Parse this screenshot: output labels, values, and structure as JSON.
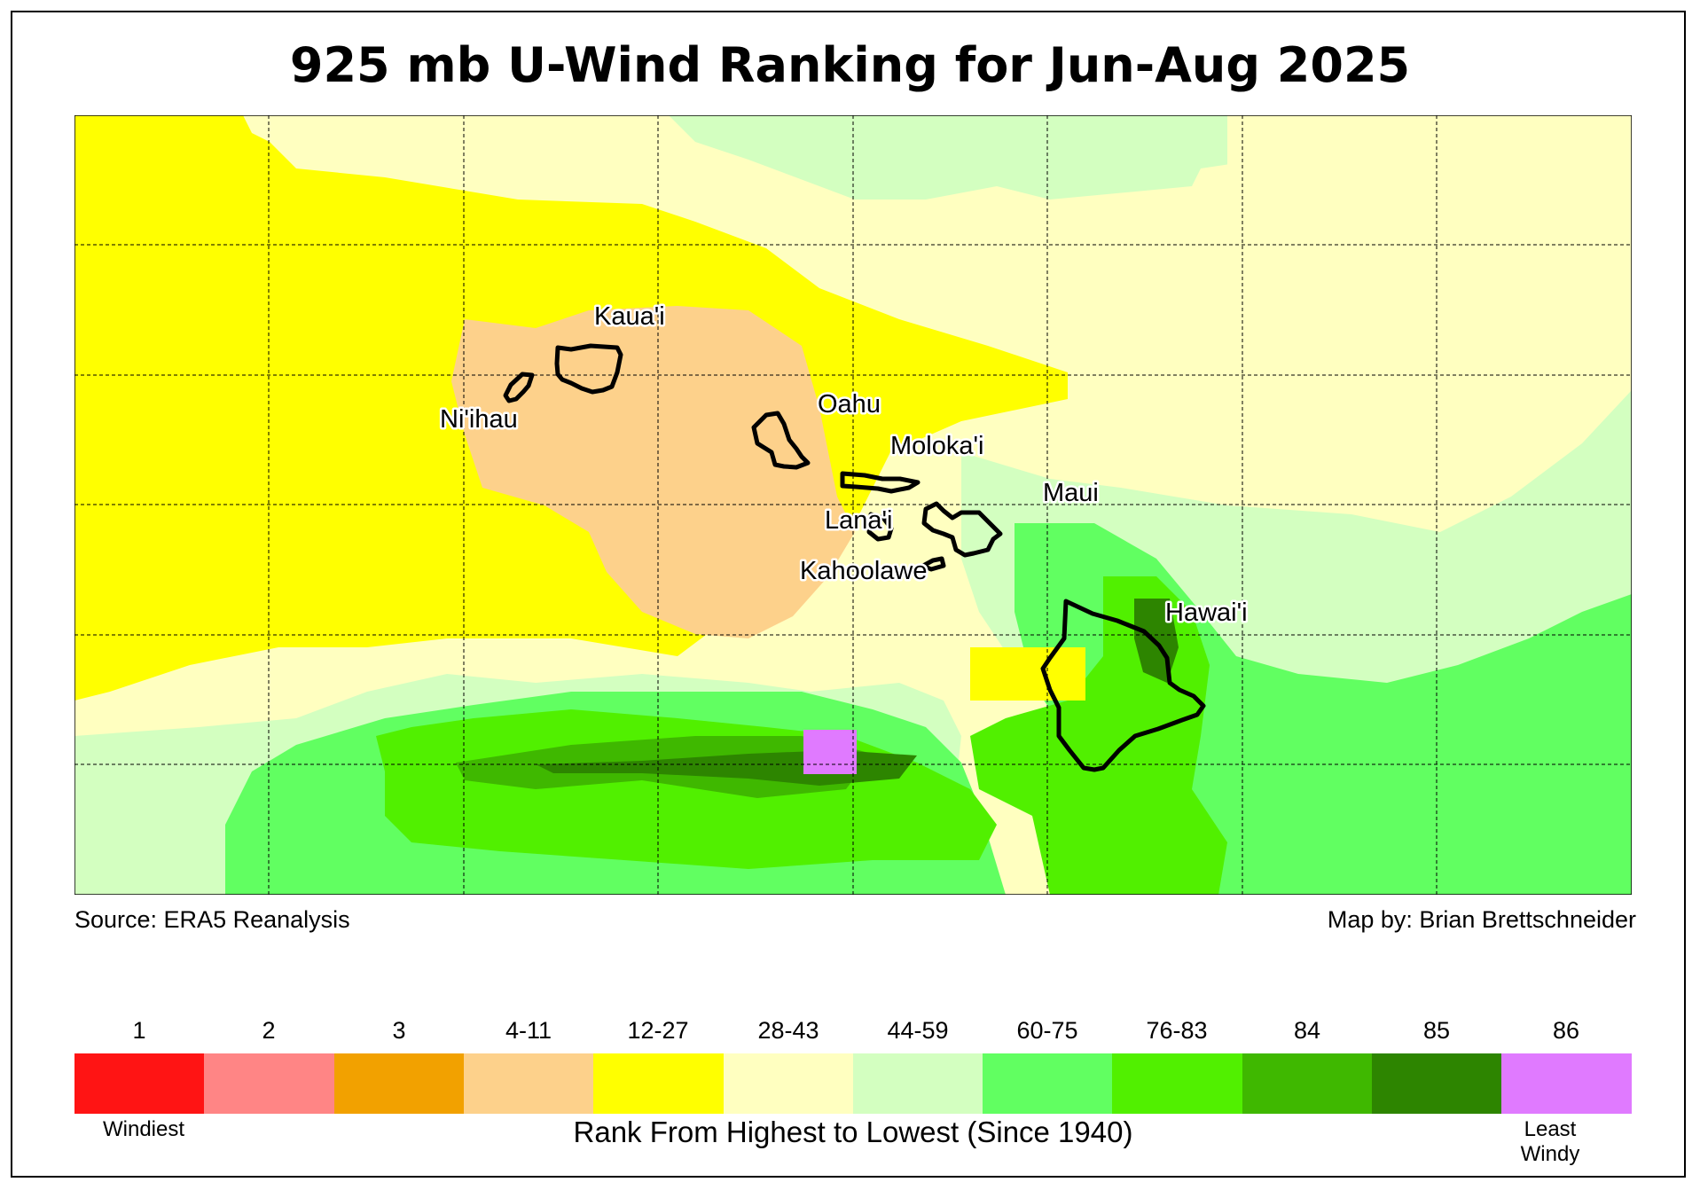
{
  "title": "925 mb U-Wind Ranking for Jun-Aug 2025",
  "source": "Source: ERA5 Reanalysis",
  "credit": "Map by: Brian Brettschneider",
  "islands": [
    {
      "id": "kauai",
      "label": "Kaua'i"
    },
    {
      "id": "niihau",
      "label": "Ni'ihau"
    },
    {
      "id": "oahu",
      "label": "Oahu"
    },
    {
      "id": "molokai",
      "label": "Moloka'i"
    },
    {
      "id": "maui",
      "label": "Maui"
    },
    {
      "id": "lanai",
      "label": "Lana'i"
    },
    {
      "id": "kahoolawe",
      "label": "Kahoolawe"
    },
    {
      "id": "hawaii",
      "label": "Hawai'i"
    }
  ],
  "legend": {
    "bins": [
      {
        "label": "1",
        "color": "#ff1414"
      },
      {
        "label": "2",
        "color": "#ff8585"
      },
      {
        "label": "3",
        "color": "#f2a100"
      },
      {
        "label": "4-11",
        "color": "#fdd18b"
      },
      {
        "label": "12-27",
        "color": "#ffff00"
      },
      {
        "label": "28-43",
        "color": "#ffffc0"
      },
      {
        "label": "44-59",
        "color": "#d3ffc0"
      },
      {
        "label": "60-75",
        "color": "#61ff61"
      },
      {
        "label": "76-83",
        "color": "#51f000"
      },
      {
        "label": "84",
        "color": "#3fb800"
      },
      {
        "label": "85",
        "color": "#2d8500"
      },
      {
        "label": "86",
        "color": "#e07aff"
      }
    ],
    "low_end": "Windiest",
    "high_end_line1": "Least",
    "high_end_line2": "Windy",
    "caption": "Rank From Highest to Lowest (Since 1940)"
  }
}
